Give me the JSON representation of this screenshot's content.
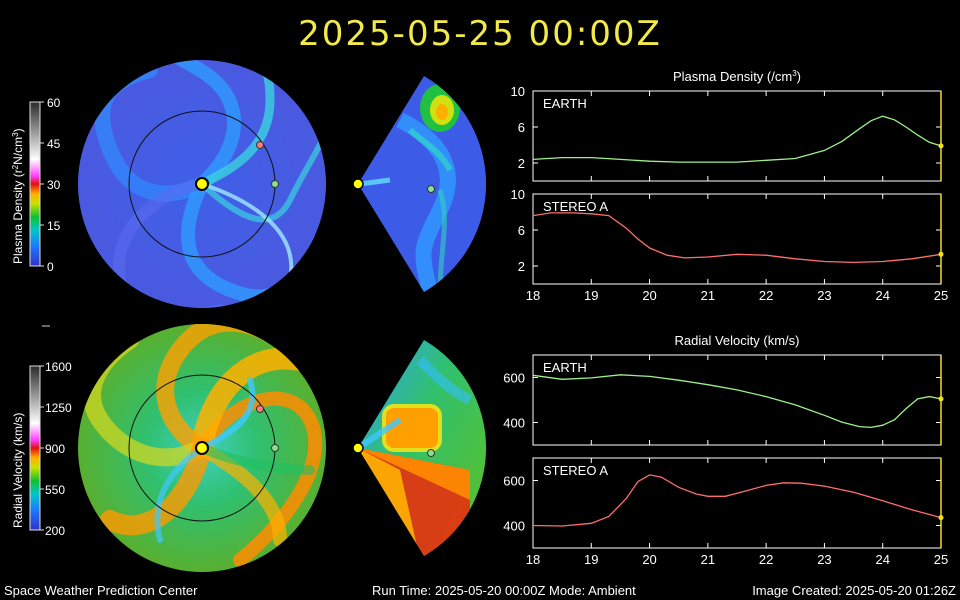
{
  "header": {
    "timestamp": "2025-05-25  00:00Z"
  },
  "colorbars": {
    "density": {
      "label_main": "Plasma Density (r",
      "label_sup1": "2",
      "label_mid": "N/cm",
      "label_sup2": "3",
      "label_end": ")",
      "ticks": [
        "60",
        "45",
        "30",
        "15",
        "0"
      ]
    },
    "velocity": {
      "label": "Radial Velocity (km/s)",
      "ticks": [
        "1600",
        "1250",
        "900",
        "550",
        "200"
      ]
    }
  },
  "markers": {
    "sun_color": "#ffff00",
    "earth_color": "#8be08b",
    "stereo_color": "#ff7a7a"
  },
  "chart_data": [
    {
      "type": "line",
      "title": "Plasma Density (/cm",
      "title_sup": "3",
      "title_end": ")",
      "xlim": [
        18,
        25
      ],
      "x_ticks": [
        "18",
        "19",
        "20",
        "21",
        "22",
        "23",
        "24",
        "25"
      ],
      "panels": [
        {
          "name": "EARTH",
          "color": "#9ef08c",
          "ylim": [
            0,
            10
          ],
          "y_ticks": [
            "10",
            "6",
            "2"
          ],
          "x": [
            18,
            18.5,
            19,
            19.5,
            20,
            20.5,
            21,
            21.5,
            22,
            22.5,
            23,
            23.3,
            23.6,
            23.8,
            24,
            24.2,
            24.4,
            24.6,
            24.8,
            25
          ],
          "y": [
            2.4,
            2.6,
            2.6,
            2.4,
            2.2,
            2.1,
            2.1,
            2.1,
            2.3,
            2.5,
            3.4,
            4.4,
            5.8,
            6.7,
            7.2,
            6.8,
            6.0,
            5.1,
            4.3,
            3.9
          ]
        },
        {
          "name": "STEREO A",
          "color": "#ff6e6e",
          "ylim": [
            0,
            10
          ],
          "y_ticks": [
            "10",
            "6",
            "2"
          ],
          "x": [
            18,
            18.3,
            18.7,
            19,
            19.3,
            19.6,
            19.8,
            20,
            20.3,
            20.6,
            21,
            21.5,
            22,
            22.5,
            23,
            23.5,
            24,
            24.5,
            25
          ],
          "y": [
            7.6,
            7.9,
            7.9,
            7.8,
            7.6,
            6.2,
            5.0,
            4.0,
            3.2,
            2.9,
            3.0,
            3.3,
            3.2,
            2.8,
            2.5,
            2.4,
            2.5,
            2.8,
            3.3
          ]
        }
      ]
    },
    {
      "type": "line",
      "title": "Radial Velocity (km/s)",
      "xlim": [
        18,
        25
      ],
      "x_ticks": [
        "18",
        "19",
        "20",
        "21",
        "22",
        "23",
        "24",
        "25"
      ],
      "panels": [
        {
          "name": "EARTH",
          "color": "#9ef08c",
          "ylim": [
            300,
            700
          ],
          "y_ticks": [
            "600",
            "400"
          ],
          "x": [
            18,
            18.5,
            19,
            19.5,
            20,
            20.5,
            21,
            21.5,
            22,
            22.5,
            23,
            23.3,
            23.6,
            23.8,
            24,
            24.2,
            24.4,
            24.6,
            24.8,
            25
          ],
          "y": [
            610,
            592,
            598,
            612,
            605,
            588,
            568,
            545,
            515,
            478,
            432,
            402,
            382,
            378,
            388,
            412,
            462,
            505,
            515,
            505
          ]
        },
        {
          "name": "STEREO A",
          "color": "#ff6e6e",
          "ylim": [
            300,
            700
          ],
          "y_ticks": [
            "600",
            "400"
          ],
          "x": [
            18,
            18.5,
            19,
            19.3,
            19.6,
            19.8,
            20,
            20.2,
            20.5,
            20.8,
            21,
            21.3,
            21.6,
            22,
            22.3,
            22.6,
            23,
            23.5,
            24,
            24.5,
            25
          ],
          "y": [
            400,
            398,
            410,
            440,
            520,
            595,
            625,
            615,
            570,
            540,
            530,
            530,
            550,
            578,
            590,
            588,
            575,
            548,
            510,
            470,
            435
          ]
        }
      ]
    }
  ],
  "footer": {
    "left": "Space Weather Prediction Center",
    "center": "Run Time: 2025-05-20 00:00Z  Mode: Ambient",
    "right": "Image Created: 2025-05-20 01:26Z"
  }
}
